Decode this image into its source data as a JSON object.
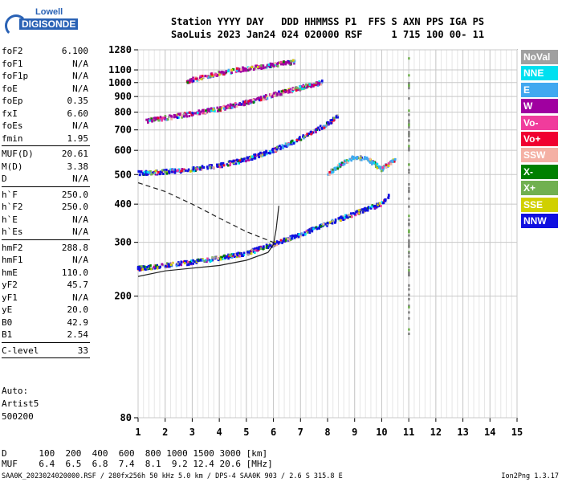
{
  "logo": {
    "line1": "Lowell",
    "line2": "DIGISONDE"
  },
  "header": {
    "line1": "Station YYYY DAY   DDD HHMMSS P1  FFS S AXN PPS IGA PS",
    "line2": "SaoLuis 2023 Jan24 024 020000 RSF     1 715 100 00- 11"
  },
  "params": {
    "group1": [
      {
        "name": "foF2",
        "value": "6.100"
      },
      {
        "name": "foF1",
        "value": "N/A"
      },
      {
        "name": "foF1p",
        "value": "N/A"
      },
      {
        "name": "foE",
        "value": "N/A"
      },
      {
        "name": "foEp",
        "value": "0.35"
      },
      {
        "name": "fxI",
        "value": "6.60"
      },
      {
        "name": "foEs",
        "value": "N/A"
      },
      {
        "name": "fmin",
        "value": "1.95"
      }
    ],
    "group2": [
      {
        "name": "MUF(D)",
        "value": "20.61"
      },
      {
        "name": "M(D)",
        "value": "3.38"
      },
      {
        "name": "D",
        "value": "N/A"
      }
    ],
    "group3": [
      {
        "name": "h`F",
        "value": "250.0"
      },
      {
        "name": "h`F2",
        "value": "250.0"
      },
      {
        "name": "h`E",
        "value": "N/A"
      },
      {
        "name": "h`Es",
        "value": "N/A"
      }
    ],
    "group4": [
      {
        "name": "hmF2",
        "value": "288.8"
      },
      {
        "name": "hmF1",
        "value": "N/A"
      },
      {
        "name": "hmE",
        "value": "110.0"
      },
      {
        "name": "yF2",
        "value": "45.7"
      },
      {
        "name": "yF1",
        "value": "N/A"
      },
      {
        "name": "yE",
        "value": "20.0"
      },
      {
        "name": "B0",
        "value": "42.9"
      },
      {
        "name": "B1",
        "value": "2.54"
      }
    ],
    "clevel": {
      "name": "C-level",
      "value": "33"
    }
  },
  "auto": {
    "line1": "Auto:",
    "line2": "Artist5",
    "line3": "500200"
  },
  "muf_table": {
    "d_label": "D",
    "muf_label": "MUF",
    "d_values": [
      "100",
      "200",
      "400",
      "600",
      "800",
      "1000",
      "1500",
      "3000"
    ],
    "d_unit": "[km]",
    "muf_values": [
      "6.4",
      "6.5",
      "6.8",
      "7.4",
      "8.1",
      "9.2",
      "12.4",
      "20.6"
    ],
    "muf_unit": "[MHz]"
  },
  "footer": {
    "left": "SAA0K_2023024020000.RSF / 280fx256h 50 kHz 5.0 km / DPS-4 SAA0K 903 / 2.6 S 315.8 E",
    "right": "Ion2Png 1.3.17"
  },
  "legend": [
    {
      "label": "NoVal",
      "color": "#a0a0a0"
    },
    {
      "label": "NNE",
      "color": "#00e0f0"
    },
    {
      "label": "E",
      "color": "#40a8f0"
    },
    {
      "label": "W",
      "color": "#a000a0"
    },
    {
      "label": "Vo-",
      "color": "#f03c9c"
    },
    {
      "label": "Vo+",
      "color": "#f00030"
    },
    {
      "label": "SSW",
      "color": "#f4b0a4"
    },
    {
      "label": "X-",
      "color": "#008000"
    },
    {
      "label": "X+",
      "color": "#70b050"
    },
    {
      "label": "SSE",
      "color": "#d0d000"
    },
    {
      "label": "NNW",
      "color": "#1010e0"
    }
  ],
  "chart_data": {
    "type": "scatter",
    "title": "",
    "xlabel": "",
    "ylabel": "",
    "x_ticks": [
      1,
      2,
      3,
      4,
      5,
      6,
      7,
      8,
      9,
      10,
      11,
      12,
      13,
      14,
      15
    ],
    "y_ticks": [
      80,
      200,
      300,
      400,
      500,
      600,
      700,
      800,
      900,
      1000,
      1100,
      1280
    ],
    "xlim": [
      1,
      15
    ],
    "ylim": [
      80,
      1280
    ],
    "y_scale": "log",
    "grid": true,
    "series": [
      {
        "color": "#1010e0",
        "points": [
          [
            1.0,
            246
          ],
          [
            2.0,
            252
          ],
          [
            3.0,
            258
          ],
          [
            4.0,
            266
          ],
          [
            5.0,
            276
          ],
          [
            6.0,
            295
          ],
          [
            7.0,
            318
          ],
          [
            8.0,
            345
          ],
          [
            9.0,
            372
          ],
          [
            10.0,
            400
          ],
          [
            10.3,
            430
          ]
        ]
      },
      {
        "color": "#1010e0",
        "points": [
          [
            1.0,
            505
          ],
          [
            2.0,
            510
          ],
          [
            3.0,
            520
          ],
          [
            4.0,
            535
          ],
          [
            5.0,
            560
          ],
          [
            6.0,
            600
          ],
          [
            7.0,
            655
          ],
          [
            8.0,
            730
          ],
          [
            8.4,
            780
          ]
        ]
      },
      {
        "color": "#a000a0",
        "points": [
          [
            1.3,
            750
          ],
          [
            2.0,
            765
          ],
          [
            3.0,
            790
          ],
          [
            4.0,
            820
          ],
          [
            5.0,
            860
          ],
          [
            6.0,
            910
          ],
          [
            7.0,
            960
          ],
          [
            7.8,
            1000
          ]
        ]
      },
      {
        "color": "#a000a0",
        "points": [
          [
            2.8,
            1010
          ],
          [
            4.0,
            1070
          ],
          [
            5.0,
            1110
          ],
          [
            6.0,
            1140
          ],
          [
            6.8,
            1170
          ]
        ]
      },
      {
        "color": "#40a8f0",
        "points": [
          [
            8.0,
            500
          ],
          [
            8.5,
            540
          ],
          [
            9.0,
            570
          ],
          [
            9.5,
            560
          ],
          [
            10.0,
            520
          ],
          [
            10.5,
            560
          ]
        ]
      },
      {
        "color": "#808080",
        "points": [
          [
            11.0,
            150
          ],
          [
            11.0,
            300
          ],
          [
            11.0,
            500
          ],
          [
            11.0,
            800
          ],
          [
            11.0,
            1200
          ]
        ]
      }
    ],
    "curves": {
      "solid": [
        [
          1,
          232
        ],
        [
          2,
          242
        ],
        [
          3,
          247
        ],
        [
          4,
          252
        ],
        [
          5,
          262
        ],
        [
          5.8,
          278
        ],
        [
          6.0,
          295
        ],
        [
          6.1,
          330
        ],
        [
          6.2,
          395
        ]
      ],
      "dashed": [
        [
          1,
          470
        ],
        [
          2,
          440
        ],
        [
          3,
          400
        ],
        [
          4,
          360
        ],
        [
          5,
          325
        ],
        [
          6,
          300
        ]
      ]
    }
  }
}
